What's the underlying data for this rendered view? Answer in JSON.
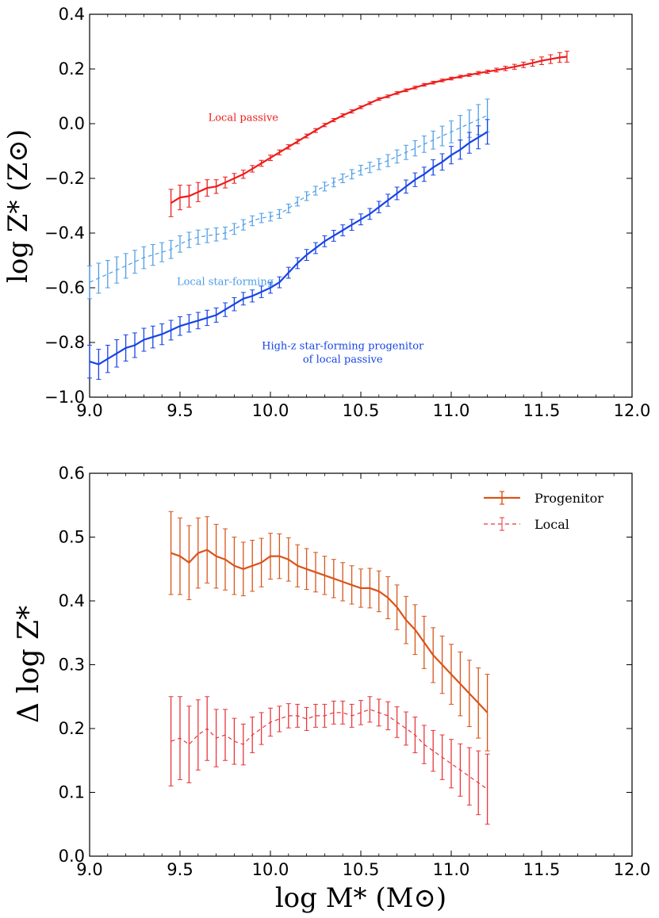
{
  "colors": {
    "local_passive": "#ee1c1c",
    "local_sf": "#4d9de6",
    "progenitor_sf": "#1744e6",
    "delta_progenitor": "#d9541a",
    "delta_local": "#e8363b"
  },
  "chart_data": [
    {
      "type": "line",
      "title": "",
      "xlabel": "",
      "ylabel": "log Z* (Z⊙)",
      "xlim": [
        9.0,
        12.0
      ],
      "ylim": [
        -1.0,
        0.4
      ],
      "xticks": [
        9.0,
        9.5,
        10.0,
        10.5,
        11.0,
        11.5,
        12.0
      ],
      "yticks": [
        -1.0,
        -0.8,
        -0.6,
        -0.4,
        -0.2,
        0.0,
        0.2,
        0.4
      ],
      "xtick_labels": [
        "9.0",
        "9.5",
        "10.0",
        "10.5",
        "11.0",
        "11.5",
        "12.0"
      ],
      "ytick_labels": [
        "−1.0",
        "−0.8",
        "−0.6",
        "−0.4",
        "−0.2",
        "0.0",
        "0.2",
        "0.4"
      ],
      "grid": false,
      "series": [
        {
          "label": "Local passive",
          "label_at": [
            9.85,
            0.01
          ],
          "color": "#ee1c1c",
          "style": "solid",
          "x": [
            9.45,
            9.5,
            9.55,
            9.6,
            9.65,
            9.7,
            9.75,
            9.8,
            9.85,
            9.9,
            9.95,
            10.0,
            10.05,
            10.1,
            10.15,
            10.2,
            10.25,
            10.3,
            10.35,
            10.4,
            10.45,
            10.5,
            10.55,
            10.6,
            10.65,
            10.7,
            10.75,
            10.8,
            10.85,
            10.9,
            10.95,
            11.0,
            11.05,
            11.1,
            11.15,
            11.2,
            11.25,
            11.3,
            11.35,
            11.4,
            11.45,
            11.5,
            11.55,
            11.6,
            11.64
          ],
          "y": [
            -0.29,
            -0.27,
            -0.265,
            -0.25,
            -0.235,
            -0.23,
            -0.215,
            -0.2,
            -0.185,
            -0.165,
            -0.145,
            -0.125,
            -0.105,
            -0.085,
            -0.065,
            -0.045,
            -0.025,
            -0.005,
            0.013,
            0.03,
            0.045,
            0.06,
            0.075,
            0.09,
            0.1,
            0.112,
            0.122,
            0.132,
            0.142,
            0.15,
            0.158,
            0.165,
            0.172,
            0.178,
            0.185,
            0.19,
            0.196,
            0.202,
            0.208,
            0.215,
            0.222,
            0.23,
            0.236,
            0.242,
            0.245
          ],
          "err": [
            0.05,
            0.045,
            0.04,
            0.035,
            0.03,
            0.025,
            0.02,
            0.018,
            0.015,
            0.012,
            0.011,
            0.01,
            0.009,
            0.008,
            0.008,
            0.007,
            0.007,
            0.006,
            0.006,
            0.006,
            0.006,
            0.005,
            0.005,
            0.005,
            0.005,
            0.005,
            0.005,
            0.005,
            0.005,
            0.005,
            0.005,
            0.005,
            0.005,
            0.005,
            0.006,
            0.006,
            0.007,
            0.008,
            0.009,
            0.01,
            0.012,
            0.014,
            0.016,
            0.018,
            0.02
          ]
        },
        {
          "label": "Local star-forming",
          "label_at": [
            9.75,
            -0.59
          ],
          "color": "#4d9de6",
          "style": "dashed",
          "x": [
            9.0,
            9.05,
            9.1,
            9.15,
            9.2,
            9.25,
            9.3,
            9.35,
            9.4,
            9.45,
            9.5,
            9.55,
            9.6,
            9.65,
            9.7,
            9.75,
            9.8,
            9.85,
            9.9,
            9.95,
            10.0,
            10.05,
            10.1,
            10.15,
            10.2,
            10.25,
            10.3,
            10.35,
            10.4,
            10.45,
            10.5,
            10.55,
            10.6,
            10.65,
            10.7,
            10.75,
            10.8,
            10.85,
            10.9,
            10.95,
            11.0,
            11.05,
            11.1,
            11.15,
            11.2
          ],
          "y": [
            -0.58,
            -0.565,
            -0.55,
            -0.535,
            -0.52,
            -0.505,
            -0.49,
            -0.48,
            -0.47,
            -0.46,
            -0.44,
            -0.425,
            -0.415,
            -0.41,
            -0.405,
            -0.4,
            -0.385,
            -0.37,
            -0.355,
            -0.345,
            -0.34,
            -0.33,
            -0.31,
            -0.285,
            -0.265,
            -0.245,
            -0.23,
            -0.215,
            -0.2,
            -0.185,
            -0.17,
            -0.16,
            -0.148,
            -0.135,
            -0.12,
            -0.105,
            -0.09,
            -0.075,
            -0.06,
            -0.045,
            -0.03,
            -0.015,
            0.0,
            0.015,
            0.03
          ],
          "err": [
            0.06,
            0.055,
            0.05,
            0.048,
            0.045,
            0.042,
            0.04,
            0.038,
            0.035,
            0.033,
            0.03,
            0.028,
            0.026,
            0.025,
            0.024,
            0.022,
            0.02,
            0.019,
            0.018,
            0.017,
            0.016,
            0.016,
            0.016,
            0.016,
            0.016,
            0.016,
            0.016,
            0.016,
            0.016,
            0.017,
            0.018,
            0.019,
            0.02,
            0.022,
            0.024,
            0.026,
            0.028,
            0.03,
            0.033,
            0.036,
            0.04,
            0.045,
            0.05,
            0.055,
            0.06
          ]
        },
        {
          "label": "High-z star-forming progenitor of local passive",
          "label_lines": [
            "High-z star-forming progenitor",
            "of local passive"
          ],
          "label_at": [
            10.4,
            -0.825
          ],
          "color": "#1744e6",
          "style": "solid",
          "x": [
            9.0,
            9.05,
            9.1,
            9.15,
            9.2,
            9.25,
            9.3,
            9.35,
            9.4,
            9.45,
            9.5,
            9.55,
            9.6,
            9.65,
            9.7,
            9.75,
            9.8,
            9.85,
            9.9,
            9.95,
            10.0,
            10.05,
            10.1,
            10.15,
            10.2,
            10.25,
            10.3,
            10.35,
            10.4,
            10.45,
            10.5,
            10.55,
            10.6,
            10.65,
            10.7,
            10.75,
            10.8,
            10.85,
            10.9,
            10.95,
            11.0,
            11.05,
            11.1,
            11.15,
            11.2
          ],
          "y": [
            -0.87,
            -0.88,
            -0.86,
            -0.84,
            -0.82,
            -0.81,
            -0.79,
            -0.78,
            -0.77,
            -0.755,
            -0.74,
            -0.73,
            -0.72,
            -0.71,
            -0.7,
            -0.68,
            -0.66,
            -0.64,
            -0.63,
            -0.615,
            -0.6,
            -0.58,
            -0.545,
            -0.51,
            -0.48,
            -0.455,
            -0.43,
            -0.41,
            -0.39,
            -0.37,
            -0.35,
            -0.33,
            -0.305,
            -0.28,
            -0.255,
            -0.23,
            -0.205,
            -0.185,
            -0.16,
            -0.14,
            -0.115,
            -0.095,
            -0.07,
            -0.05,
            -0.03
          ],
          "err": [
            0.06,
            0.055,
            0.05,
            0.05,
            0.048,
            0.045,
            0.042,
            0.04,
            0.038,
            0.036,
            0.034,
            0.032,
            0.03,
            0.028,
            0.026,
            0.025,
            0.024,
            0.023,
            0.022,
            0.021,
            0.02,
            0.02,
            0.02,
            0.02,
            0.02,
            0.02,
            0.02,
            0.02,
            0.02,
            0.02,
            0.02,
            0.02,
            0.021,
            0.022,
            0.023,
            0.024,
            0.025,
            0.026,
            0.028,
            0.03,
            0.032,
            0.035,
            0.038,
            0.042,
            0.045
          ]
        }
      ]
    },
    {
      "type": "line",
      "title": "",
      "xlabel": "log M* (M⊙)",
      "ylabel": "Δ log Z*",
      "xlim": [
        9.0,
        12.0
      ],
      "ylim": [
        0.0,
        0.6
      ],
      "xticks": [
        9.0,
        9.5,
        10.0,
        10.5,
        11.0,
        11.5,
        12.0
      ],
      "yticks": [
        0.0,
        0.1,
        0.2,
        0.3,
        0.4,
        0.5,
        0.6
      ],
      "xtick_labels": [
        "9.0",
        "9.5",
        "10.0",
        "10.5",
        "11.0",
        "11.5",
        "12.0"
      ],
      "ytick_labels": [
        "0.0",
        "0.1",
        "0.2",
        "0.3",
        "0.4",
        "0.5",
        "0.6"
      ],
      "grid": false,
      "legend": "top-right",
      "series": [
        {
          "name": "Progenitor",
          "color": "#d9541a",
          "style": "solid",
          "x": [
            9.45,
            9.5,
            9.55,
            9.6,
            9.65,
            9.7,
            9.75,
            9.8,
            9.85,
            9.9,
            9.95,
            10.0,
            10.05,
            10.1,
            10.15,
            10.2,
            10.25,
            10.3,
            10.35,
            10.4,
            10.45,
            10.5,
            10.55,
            10.6,
            10.65,
            10.7,
            10.75,
            10.8,
            10.85,
            10.9,
            10.95,
            11.0,
            11.05,
            11.1,
            11.15,
            11.2
          ],
          "y": [
            0.475,
            0.47,
            0.46,
            0.475,
            0.48,
            0.47,
            0.465,
            0.455,
            0.45,
            0.455,
            0.46,
            0.47,
            0.47,
            0.465,
            0.455,
            0.45,
            0.445,
            0.44,
            0.435,
            0.43,
            0.425,
            0.42,
            0.42,
            0.415,
            0.405,
            0.39,
            0.37,
            0.355,
            0.335,
            0.315,
            0.3,
            0.285,
            0.27,
            0.255,
            0.24,
            0.225
          ],
          "err": [
            0.065,
            0.06,
            0.058,
            0.055,
            0.052,
            0.05,
            0.048,
            0.045,
            0.042,
            0.04,
            0.038,
            0.036,
            0.035,
            0.034,
            0.033,
            0.032,
            0.031,
            0.03,
            0.03,
            0.03,
            0.03,
            0.03,
            0.031,
            0.032,
            0.033,
            0.035,
            0.037,
            0.039,
            0.041,
            0.043,
            0.045,
            0.047,
            0.05,
            0.052,
            0.055,
            0.06
          ]
        },
        {
          "name": "Local",
          "color": "#e8363b",
          "style": "dashed",
          "x": [
            9.45,
            9.5,
            9.55,
            9.6,
            9.65,
            9.7,
            9.75,
            9.8,
            9.85,
            9.9,
            9.95,
            10.0,
            10.05,
            10.1,
            10.15,
            10.2,
            10.25,
            10.3,
            10.35,
            10.4,
            10.45,
            10.5,
            10.55,
            10.6,
            10.65,
            10.7,
            10.75,
            10.8,
            10.85,
            10.9,
            10.95,
            11.0,
            11.05,
            11.1,
            11.15,
            11.2
          ],
          "y": [
            0.18,
            0.185,
            0.175,
            0.19,
            0.2,
            0.185,
            0.19,
            0.18,
            0.175,
            0.19,
            0.2,
            0.21,
            0.215,
            0.22,
            0.22,
            0.215,
            0.22,
            0.22,
            0.225,
            0.225,
            0.22,
            0.225,
            0.23,
            0.225,
            0.22,
            0.21,
            0.2,
            0.19,
            0.175,
            0.165,
            0.155,
            0.145,
            0.135,
            0.125,
            0.115,
            0.105
          ],
          "err": [
            0.07,
            0.065,
            0.06,
            0.055,
            0.05,
            0.045,
            0.04,
            0.036,
            0.032,
            0.028,
            0.025,
            0.022,
            0.02,
            0.019,
            0.018,
            0.018,
            0.018,
            0.018,
            0.018,
            0.018,
            0.018,
            0.019,
            0.02,
            0.021,
            0.022,
            0.024,
            0.026,
            0.028,
            0.03,
            0.032,
            0.035,
            0.038,
            0.041,
            0.045,
            0.05,
            0.055
          ]
        }
      ]
    }
  ]
}
